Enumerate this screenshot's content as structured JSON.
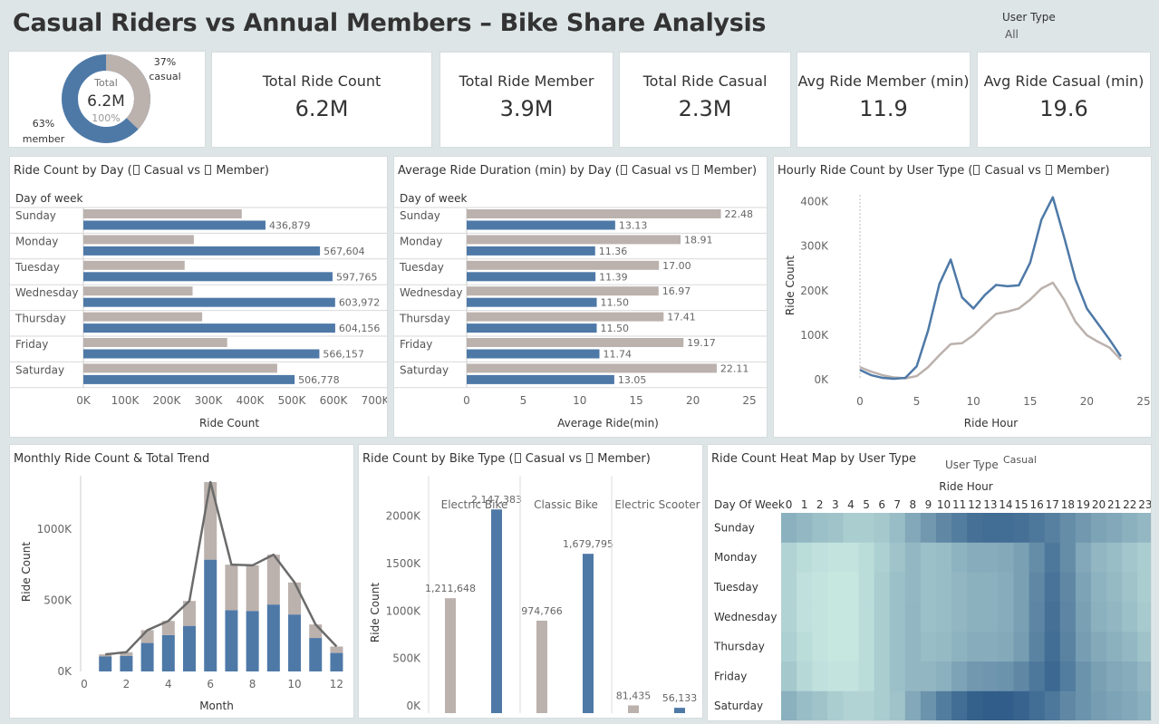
{
  "header": {
    "title": "Casual Riders vs Annual Members – Bike Share Analysis",
    "filter_label": "User Type",
    "filter_value": "All"
  },
  "colors": {
    "casual": "#bbb1ad",
    "member": "#4e79a7",
    "total": "#6b6b6b"
  },
  "donut": {
    "center_label": "Total",
    "center_value": "6.2M",
    "center_pct": "100%",
    "casual_pct_label": "37%",
    "casual_label": "casual",
    "member_pct_label": "63%",
    "member_label": "member",
    "casual_share": 0.37,
    "member_share": 0.63
  },
  "kpis": [
    {
      "label": "Total Ride Count",
      "value": "6.2M"
    },
    {
      "label": "Total Ride Member",
      "value": "3.9M"
    },
    {
      "label": "Total Ride Casual",
      "value": "2.3M"
    },
    {
      "label": "Avg Ride Member (min)",
      "value": "11.9"
    },
    {
      "label": "Avg Ride Casual (min)",
      "value": "19.6"
    }
  ],
  "titles": {
    "day_count": [
      "Ride Count by Day (",
      " Casual vs ",
      " Member)"
    ],
    "day_duration": [
      "Average Ride Duration (min) by Day (",
      " Casual vs ",
      " Member)"
    ],
    "hourly": [
      "Hourly Ride Count by User Type (",
      " Casual vs ",
      " Member)"
    ],
    "monthly": "Monthly Ride Count & Total Trend",
    "bike_type": [
      "Ride Count by Bike Type (",
      " Casual vs ",
      " Member)"
    ],
    "heatmap": "Ride Count Heat Map by User Type"
  },
  "chart_data": [
    {
      "type": "bar",
      "title": "Ride Count by Day",
      "row_header": "Day of week",
      "categories": [
        "Sunday",
        "Monday",
        "Tuesday",
        "Wednesday",
        "Thursday",
        "Friday",
        "Saturday"
      ],
      "series": [
        {
          "name": "Casual",
          "values": [
            380000,
            265000,
            243000,
            262000,
            285000,
            345000,
            465000
          ]
        },
        {
          "name": "Member",
          "values": [
            436879,
            567604,
            597765,
            603972,
            604156,
            566157,
            506778
          ],
          "labels": [
            "436,879",
            "567,604",
            "597,765",
            "603,972",
            "604,156",
            "566,157",
            "506,778"
          ]
        }
      ],
      "ticks": [
        "0K",
        "100K",
        "200K",
        "300K",
        "400K",
        "500K",
        "600K",
        "700K"
      ],
      "xlabel": "Ride Count",
      "xlim": [
        0,
        700000
      ]
    },
    {
      "type": "bar",
      "title": "Average Ride Duration (min) by Day",
      "row_header": "Day of week",
      "categories": [
        "Sunday",
        "Monday",
        "Tuesday",
        "Wednesday",
        "Thursday",
        "Friday",
        "Saturday"
      ],
      "series": [
        {
          "name": "Casual",
          "values": [
            22.48,
            18.91,
            17.0,
            16.97,
            17.41,
            19.17,
            22.11
          ],
          "labels": [
            "22.48",
            "18.91",
            "17.00",
            "16.97",
            "17.41",
            "19.17",
            "22.11"
          ]
        },
        {
          "name": "Member",
          "values": [
            13.13,
            11.36,
            11.39,
            11.5,
            11.5,
            11.74,
            13.05
          ],
          "labels": [
            "13.13",
            "11.36",
            "11.39",
            "11.50",
            "11.50",
            "11.74",
            "13.05"
          ]
        }
      ],
      "ticks": [
        "0",
        "5",
        "10",
        "15",
        "20",
        "25"
      ],
      "xlabel": "Average Ride(min)",
      "xlim": [
        0,
        25
      ]
    },
    {
      "type": "line",
      "title": "Hourly Ride Count by User Type",
      "x": [
        0,
        1,
        2,
        3,
        4,
        5,
        6,
        7,
        8,
        9,
        10,
        11,
        12,
        13,
        14,
        15,
        16,
        17,
        18,
        19,
        20,
        21,
        22,
        23
      ],
      "series": [
        {
          "name": "Casual",
          "values": [
            28000,
            18000,
            10000,
            5000,
            3000,
            8000,
            28000,
            55000,
            80000,
            82000,
            100000,
            125000,
            148000,
            153000,
            160000,
            180000,
            205000,
            218000,
            180000,
            130000,
            100000,
            85000,
            72000,
            45000
          ]
        },
        {
          "name": "Member",
          "values": [
            22000,
            10000,
            4000,
            2000,
            4000,
            30000,
            110000,
            215000,
            270000,
            185000,
            160000,
            190000,
            213000,
            210000,
            212000,
            263000,
            360000,
            410000,
            320000,
            225000,
            160000,
            125000,
            90000,
            52000
          ]
        }
      ],
      "xticks": [
        "0",
        "5",
        "10",
        "15",
        "20",
        "25"
      ],
      "yticks": [
        "0K",
        "100K",
        "200K",
        "300K",
        "400K"
      ],
      "xlabel": "Ride Hour",
      "ylabel": "Ride Count",
      "xlim": [
        0,
        25
      ],
      "ylim": [
        0,
        440000
      ]
    },
    {
      "type": "bar",
      "title": "Monthly Ride Count & Total Trend",
      "x": [
        1,
        2,
        3,
        4,
        5,
        6,
        7,
        8,
        9,
        10,
        11,
        12
      ],
      "series": [
        {
          "name": "Member",
          "values": [
            105000,
            110000,
            200000,
            255000,
            320000,
            785000,
            430000,
            425000,
            470000,
            400000,
            235000,
            130000
          ]
        },
        {
          "name": "Casual",
          "values": [
            15000,
            25000,
            90000,
            100000,
            175000,
            545000,
            320000,
            320000,
            350000,
            225000,
            95000,
            45000
          ]
        },
        {
          "name": "Total",
          "values": [
            120000,
            135000,
            290000,
            355000,
            495000,
            1330000,
            750000,
            745000,
            820000,
            625000,
            330000,
            175000
          ]
        }
      ],
      "xticks": [
        "0",
        "2",
        "4",
        "6",
        "8",
        "10",
        "12"
      ],
      "yticks": [
        "0K",
        "500K",
        "1000K"
      ],
      "xlabel": "Month",
      "ylabel": "Ride Count",
      "xlim": [
        0,
        12.8
      ],
      "ylim": [
        0,
        1400000
      ]
    },
    {
      "type": "bar",
      "title": "Ride Count by Bike Type",
      "categories": [
        "Electric Bike",
        "Classic Bike",
        "Electric Scooter"
      ],
      "series": [
        {
          "name": "Casual",
          "values": [
            1211648,
            974766,
            81435
          ],
          "labels": [
            "1,211,648",
            "974,766",
            "81,435"
          ]
        },
        {
          "name": "Member",
          "values": [
            2147383,
            1679795,
            56133
          ],
          "labels": [
            "2,147,383",
            "1,679,795",
            "56,133"
          ]
        }
      ],
      "yticks": [
        "0K",
        "500K",
        "1000K",
        "1500K",
        "2000K"
      ],
      "ylabel": "Ride Count",
      "ylim": [
        0,
        2350000
      ]
    },
    {
      "type": "heatmap",
      "title": "Ride Count Heat Map by User Type",
      "filter_label": "User Type",
      "filter_value": "Casual",
      "col_header": "Ride Hour",
      "row_header": "Day Of Week",
      "x": [
        "0",
        "1",
        "2",
        "3",
        "4",
        "5",
        "6",
        "7",
        "8",
        "9",
        "10",
        "11",
        "12",
        "13",
        "14",
        "15",
        "16",
        "17",
        "18",
        "19",
        "20",
        "21",
        "22",
        "23"
      ],
      "y": [
        "Sunday",
        "Monday",
        "Tuesday",
        "Wednesday",
        "Thursday",
        "Friday",
        "Saturday"
      ],
      "values": [
        [
          0.4,
          0.35,
          0.3,
          0.28,
          0.22,
          0.22,
          0.25,
          0.32,
          0.45,
          0.55,
          0.65,
          0.72,
          0.8,
          0.82,
          0.82,
          0.8,
          0.75,
          0.7,
          0.62,
          0.55,
          0.48,
          0.45,
          0.4,
          0.35
        ],
        [
          0.18,
          0.12,
          0.1,
          0.08,
          0.08,
          0.12,
          0.2,
          0.28,
          0.35,
          0.3,
          0.32,
          0.38,
          0.42,
          0.42,
          0.44,
          0.5,
          0.62,
          0.75,
          0.62,
          0.45,
          0.36,
          0.32,
          0.26,
          0.22
        ],
        [
          0.18,
          0.1,
          0.08,
          0.06,
          0.06,
          0.12,
          0.22,
          0.3,
          0.35,
          0.3,
          0.32,
          0.36,
          0.4,
          0.4,
          0.42,
          0.5,
          0.65,
          0.78,
          0.65,
          0.48,
          0.38,
          0.34,
          0.28,
          0.22
        ],
        [
          0.18,
          0.1,
          0.08,
          0.06,
          0.06,
          0.12,
          0.22,
          0.3,
          0.36,
          0.3,
          0.32,
          0.36,
          0.4,
          0.4,
          0.42,
          0.5,
          0.66,
          0.8,
          0.66,
          0.5,
          0.4,
          0.36,
          0.3,
          0.24
        ],
        [
          0.2,
          0.12,
          0.08,
          0.06,
          0.06,
          0.12,
          0.22,
          0.3,
          0.36,
          0.32,
          0.34,
          0.38,
          0.42,
          0.42,
          0.44,
          0.52,
          0.68,
          0.82,
          0.68,
          0.52,
          0.44,
          0.4,
          0.35,
          0.28
        ],
        [
          0.25,
          0.15,
          0.1,
          0.08,
          0.08,
          0.12,
          0.22,
          0.3,
          0.36,
          0.36,
          0.4,
          0.48,
          0.55,
          0.56,
          0.58,
          0.65,
          0.75,
          0.85,
          0.72,
          0.58,
          0.5,
          0.45,
          0.42,
          0.36
        ],
        [
          0.4,
          0.32,
          0.28,
          0.22,
          0.18,
          0.18,
          0.22,
          0.28,
          0.45,
          0.58,
          0.72,
          0.82,
          0.9,
          0.92,
          0.92,
          0.88,
          0.82,
          0.75,
          0.65,
          0.58,
          0.52,
          0.48,
          0.45,
          0.4
        ]
      ]
    }
  ]
}
